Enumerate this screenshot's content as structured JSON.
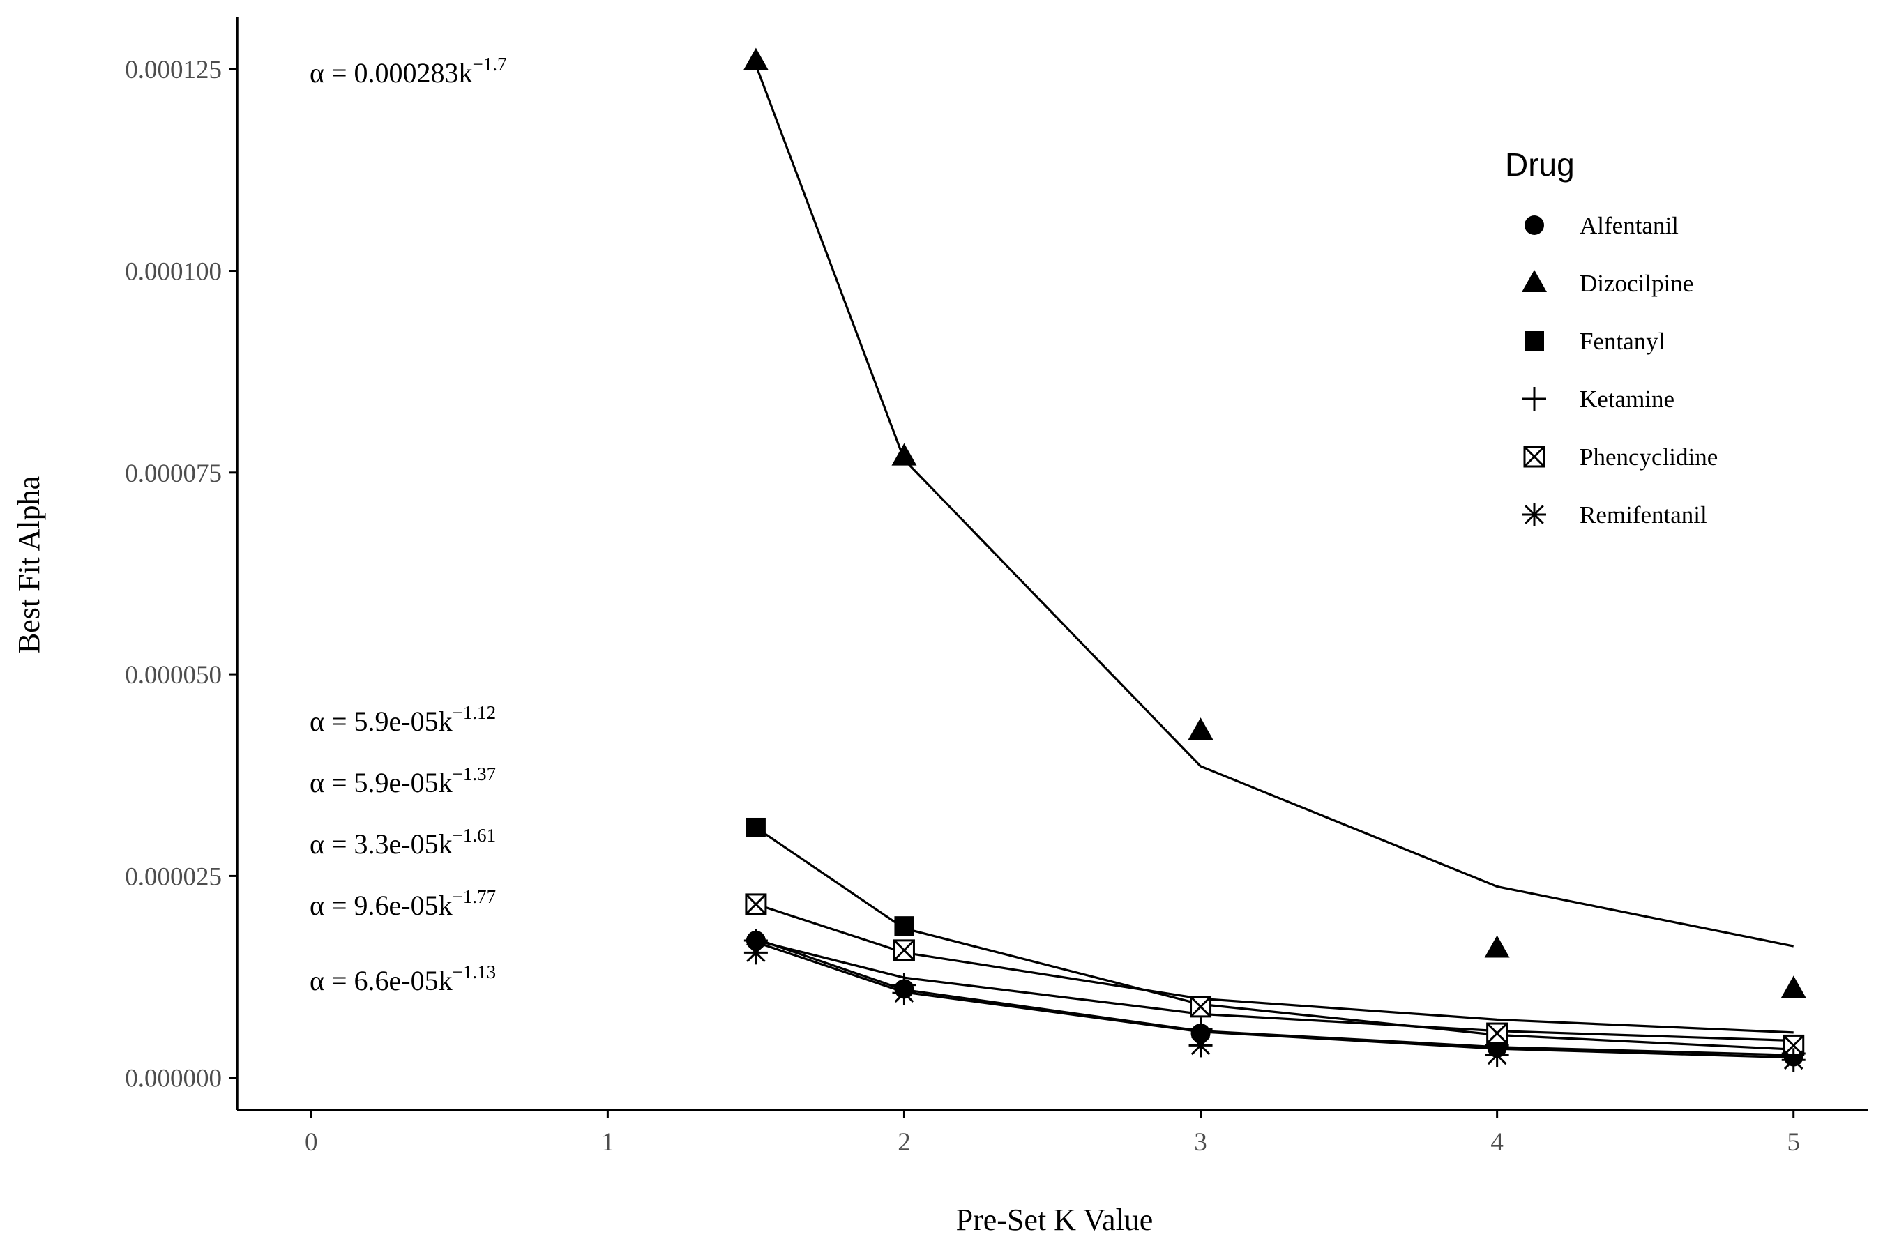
{
  "chart_data": {
    "type": "scatter",
    "xlabel": "Pre-Set K Value",
    "ylabel": "Best Fit Alpha",
    "xlim": [
      -0.25,
      5.25
    ],
    "ylim": [
      -4e-06,
      0.0001315
    ],
    "x_ticks": [
      0,
      1,
      2,
      3,
      4,
      5
    ],
    "y_ticks": [
      0.0,
      2.5e-05,
      5e-05,
      7.5e-05,
      0.0001,
      0.000125
    ],
    "x_tick_labels": [
      "0",
      "1",
      "2",
      "3",
      "4",
      "5"
    ],
    "y_tick_labels": [
      "0.000000",
      "0.000025",
      "0.000050",
      "0.000075",
      "0.000100",
      "0.000125"
    ],
    "grid": false,
    "legend": {
      "title": "Drug",
      "position": "right",
      "entries": [
        "Alfentanil",
        "Dizocilpine",
        "Fentanyl",
        "Ketamine",
        "Phencyclidine",
        "Remifentanil"
      ]
    },
    "series": [
      {
        "name": "Alfentanil",
        "marker": "circle",
        "x": [
          1.5,
          2,
          3,
          4,
          5
        ],
        "points": [
          1.7e-05,
          1.1e-05,
          5.5e-06,
          3.7e-06,
          2.6e-06
        ],
        "fit": [
          1.72e-05,
          1.09e-05,
          5.8e-06,
          3.8e-06,
          2.8e-06
        ]
      },
      {
        "name": "Dizocilpine",
        "marker": "triangle",
        "x": [
          1.5,
          2,
          3,
          4,
          5
        ],
        "points": [
          0.000126,
          7.7e-05,
          4.3e-05,
          1.6e-05,
          1.1e-05
        ],
        "fit": [
          0.0001255,
          7.66e-05,
          3.86e-05,
          2.37e-05,
          1.63e-05
        ]
      },
      {
        "name": "Fentanyl",
        "marker": "square",
        "x": [
          1.5,
          2,
          3,
          4,
          5
        ],
        "points": [
          3.1e-05,
          1.88e-05,
          8.7e-06,
          5.2e-06,
          4e-06
        ],
        "fit": [
          3.1e-05,
          1.85e-05,
          9.1e-06,
          5.3e-06,
          3.5e-06
        ]
      },
      {
        "name": "Ketamine",
        "marker": "plus",
        "x": [
          1.5,
          2,
          3,
          4,
          5
        ],
        "points": [
          1.7e-05,
          1.15e-05,
          6e-06,
          4e-06,
          3e-06
        ],
        "fit": [
          1.7e-05,
          1.24e-05,
          7.9e-06,
          5.8e-06,
          4.6e-06
        ]
      },
      {
        "name": "Phencyclidine",
        "marker": "square-x",
        "x": [
          1.5,
          2,
          3,
          4,
          5
        ],
        "points": [
          2.15e-05,
          1.58e-05,
          8.8e-06,
          5.5e-06,
          4e-06
        ],
        "fit": [
          2.15e-05,
          1.55e-05,
          9.8e-06,
          7.2e-06,
          5.6e-06
        ]
      },
      {
        "name": "Remifentanil",
        "marker": "asterisk",
        "x": [
          1.5,
          2,
          3,
          4,
          5
        ],
        "points": [
          1.55e-05,
          1.05e-05,
          4e-06,
          2.8e-06,
          2.2e-06
        ],
        "fit": [
          1.68e-05,
          1.06e-05,
          5.7e-06,
          3.6e-06,
          2.5e-06
        ]
      }
    ],
    "annotations": [
      {
        "text": "α = 0.000283k",
        "exponent": "−1.7"
      },
      {
        "text": "α = 5.9e-05k",
        "exponent": "−1.12"
      },
      {
        "text": "α = 5.9e-05k",
        "exponent": "−1.37"
      },
      {
        "text": "α = 3.3e-05k",
        "exponent": "−1.61"
      },
      {
        "text": "α = 9.6e-05k",
        "exponent": "−1.77"
      },
      {
        "text": "α = 6.6e-05k",
        "exponent": "−1.13"
      }
    ]
  }
}
